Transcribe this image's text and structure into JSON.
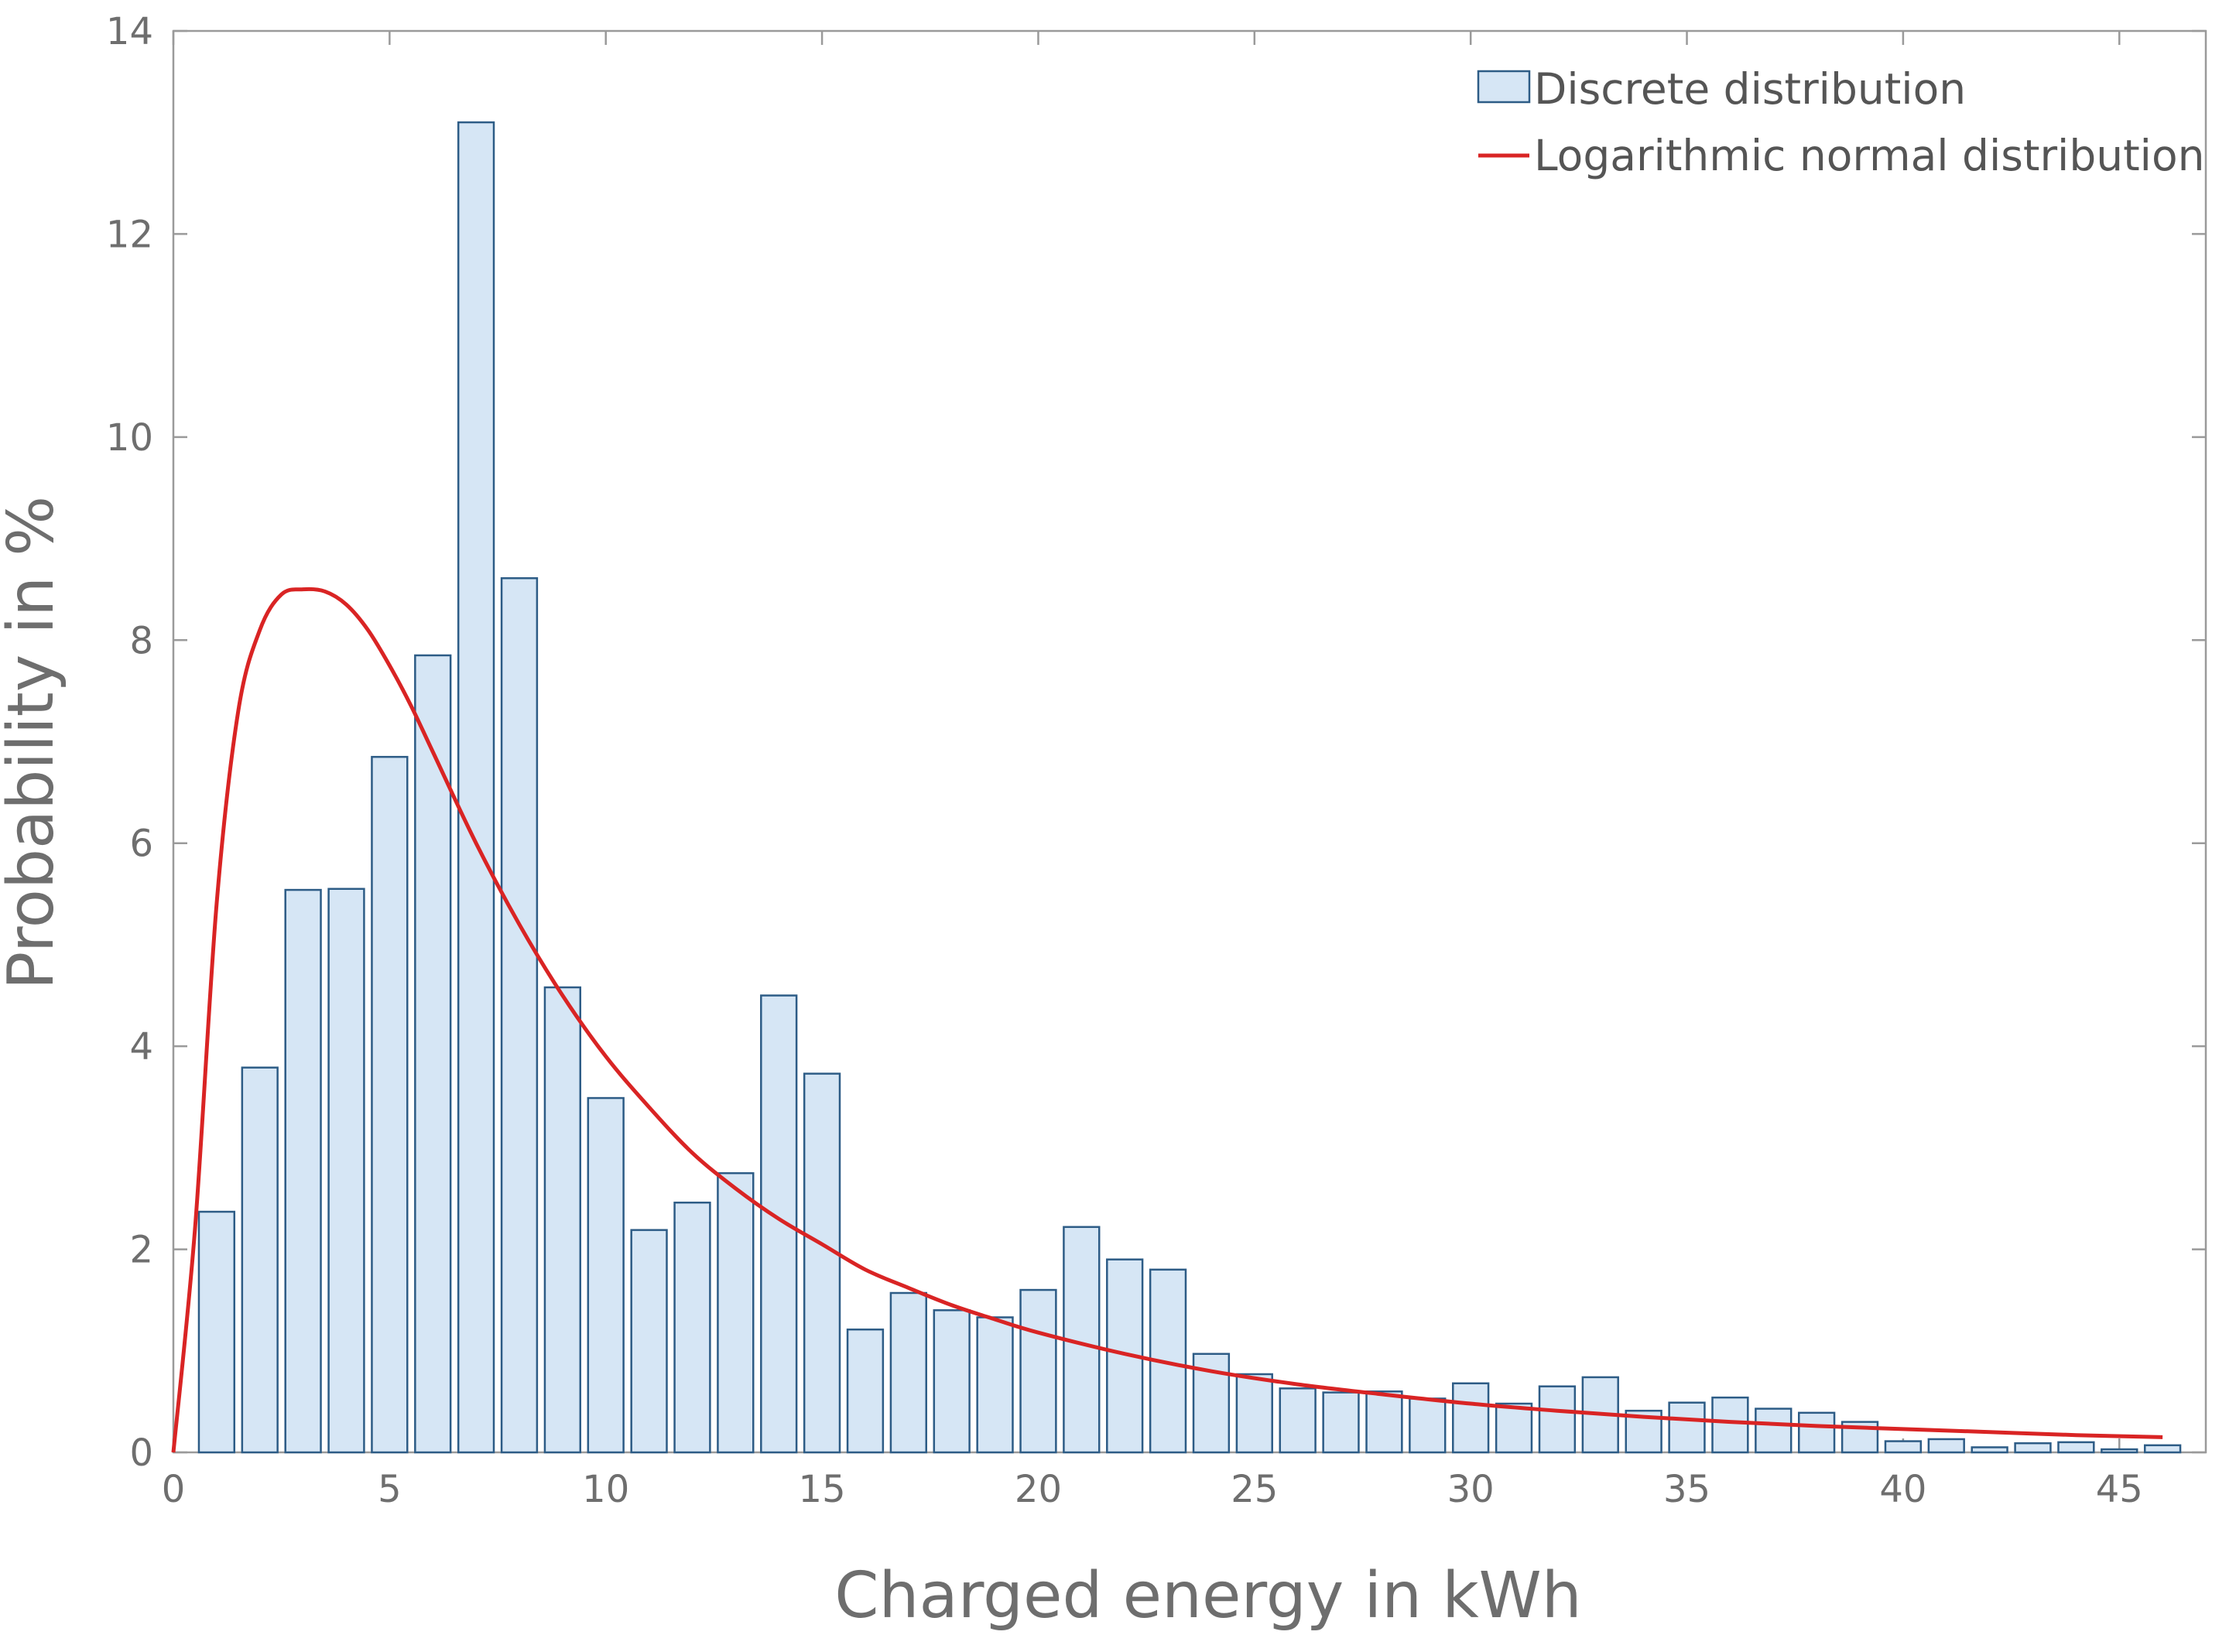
{
  "chart_data": {
    "type": "bar",
    "title": "",
    "xlabel": "Charged energy in kWh",
    "ylabel": "Probability in %",
    "xlim": [
      0,
      47
    ],
    "ylim": [
      0,
      14
    ],
    "x_ticks": [
      0,
      5,
      10,
      15,
      20,
      25,
      30,
      35,
      40,
      45
    ],
    "y_ticks": [
      0,
      2,
      4,
      6,
      8,
      10,
      12,
      14
    ],
    "grid": false,
    "legend_position": "top-right",
    "colors": {
      "bar_fill": "#d6e6f5",
      "bar_edge": "#2d5c86",
      "fit_line": "#d92424",
      "axis": "#9a9a9a",
      "text": "#6e6e6e"
    },
    "series": [
      {
        "name": "Discrete distribution",
        "kind": "bar",
        "x": [
          1,
          2,
          3,
          4,
          5,
          6,
          7,
          8,
          9,
          10,
          11,
          12,
          13,
          14,
          15,
          16,
          17,
          18,
          19,
          20,
          21,
          22,
          23,
          24,
          25,
          26,
          27,
          28,
          29,
          30,
          31,
          32,
          33,
          34,
          35,
          36,
          37,
          38,
          39,
          40,
          41,
          42,
          43,
          44,
          45,
          46
        ],
        "values": [
          2.37,
          3.79,
          5.54,
          5.55,
          6.85,
          7.85,
          13.1,
          8.61,
          4.58,
          3.49,
          2.19,
          2.46,
          2.75,
          4.5,
          3.73,
          1.21,
          1.57,
          1.4,
          1.33,
          1.6,
          2.22,
          1.9,
          1.8,
          0.97,
          0.77,
          0.63,
          0.59,
          0.6,
          0.53,
          0.68,
          0.48,
          0.65,
          0.74,
          0.41,
          0.49,
          0.54,
          0.43,
          0.39,
          0.3,
          0.11,
          0.13,
          0.05,
          0.09,
          0.1,
          0.03,
          0.07
        ]
      },
      {
        "name": "Logarithmic normal distribution",
        "kind": "line",
        "x": [
          0,
          0.5,
          1,
          1.5,
          2,
          2.5,
          3,
          3.5,
          4,
          4.5,
          5,
          5.5,
          6,
          7,
          8,
          9,
          10,
          11,
          12,
          13,
          14,
          15,
          16,
          17,
          18,
          19,
          20,
          22,
          24,
          26,
          28,
          30,
          32,
          34,
          36,
          38,
          40,
          42,
          44,
          46
        ],
        "values": [
          0,
          2.2,
          5.4,
          7.3,
          8.1,
          8.45,
          8.5,
          8.48,
          8.35,
          8.1,
          7.75,
          7.35,
          6.9,
          6.0,
          5.2,
          4.5,
          3.9,
          3.4,
          2.95,
          2.6,
          2.3,
          2.05,
          1.8,
          1.62,
          1.45,
          1.31,
          1.18,
          0.97,
          0.8,
          0.67,
          0.57,
          0.48,
          0.41,
          0.35,
          0.3,
          0.26,
          0.23,
          0.2,
          0.17,
          0.15
        ]
      }
    ]
  }
}
